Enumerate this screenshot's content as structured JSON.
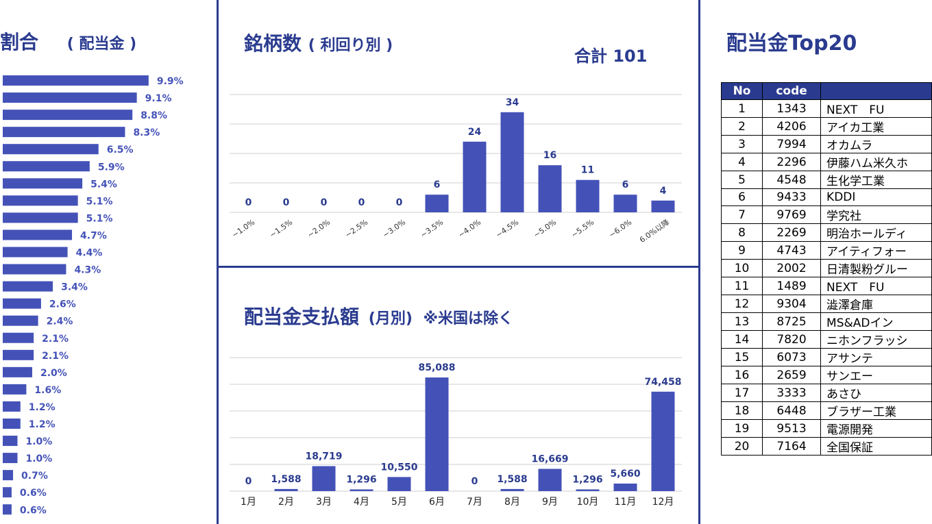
{
  "colors": {
    "bar": "#4452b8",
    "title": "#2a3b8f",
    "divider": "#2a3b8f",
    "grid": "#cfcfcf"
  },
  "left_panel": {
    "title": "割合",
    "subtitle": "( 配当金 )"
  },
  "top_chart_panel": {
    "title": "銘柄数",
    "subtitle": "( 利回り別 )",
    "total_label": "合計 101"
  },
  "bottom_chart_panel": {
    "title": "配当金支払額",
    "subtitle": "(月別)",
    "note": "※米国は除く"
  },
  "right_panel": {
    "title": "配当金Top20",
    "table": {
      "headers": [
        "No",
        "code",
        ""
      ],
      "rows": [
        [
          "1",
          "1343",
          "NEXT　FU"
        ],
        [
          "2",
          "4206",
          "アイカ工業"
        ],
        [
          "3",
          "7994",
          "オカムラ"
        ],
        [
          "4",
          "2296",
          "伊藤ハム米久ホ"
        ],
        [
          "5",
          "4548",
          "生化学工業"
        ],
        [
          "6",
          "9433",
          "KDDI"
        ],
        [
          "7",
          "9769",
          "学究社"
        ],
        [
          "8",
          "2269",
          "明治ホールディ"
        ],
        [
          "9",
          "4743",
          "アイティフォー"
        ],
        [
          "10",
          "2002",
          "日清製粉グルー"
        ],
        [
          "11",
          "1489",
          "NEXT　FU"
        ],
        [
          "12",
          "9304",
          "澁澤倉庫"
        ],
        [
          "13",
          "8725",
          "MS&ADイン"
        ],
        [
          "14",
          "7820",
          "ニホンフラッシ"
        ],
        [
          "15",
          "6073",
          "アサンテ"
        ],
        [
          "16",
          "2659",
          "サンエー"
        ],
        [
          "17",
          "3333",
          "あさひ"
        ],
        [
          "18",
          "6448",
          "ブラザー工業"
        ],
        [
          "19",
          "9513",
          "電源開発"
        ],
        [
          "20",
          "7164",
          "全国保証"
        ]
      ]
    }
  },
  "chart_data": [
    {
      "type": "bar",
      "orientation": "horizontal",
      "values": [
        9.9,
        9.1,
        8.8,
        8.3,
        6.5,
        5.9,
        5.4,
        5.1,
        5.1,
        4.7,
        4.4,
        4.3,
        3.4,
        2.6,
        2.4,
        2.1,
        2.1,
        2.0,
        1.6,
        1.2,
        1.2,
        1.0,
        1.0,
        0.7,
        0.6,
        0.6
      ],
      "labels": [
        "9.9%",
        "9.1%",
        "8.8%",
        "8.3%",
        "6.5%",
        "5.9%",
        "5.4%",
        "5.1%",
        "5.1%",
        "4.7%",
        "4.4%",
        "4.3%",
        "3.4%",
        "2.6%",
        "2.4%",
        "2.1%",
        "2.1%",
        "2.0%",
        "1.6%",
        "1.2%",
        "1.2%",
        "1.0%",
        "1.0%",
        "0.7%",
        "0.6%",
        "0.6%"
      ]
    },
    {
      "type": "bar",
      "categories": [
        "~1.0%",
        "~1.5%",
        "~2.0%",
        "~2.5%",
        "~3.0%",
        "~3.5%",
        "~4.0%",
        "~4.5%",
        "~5.0%",
        "~5.5%",
        "~6.0%",
        "6.0%以降"
      ],
      "values": [
        0,
        0,
        0,
        0,
        0,
        6,
        24,
        34,
        16,
        11,
        6,
        4
      ],
      "ylim": [
        0,
        40
      ],
      "grid": true
    },
    {
      "type": "bar",
      "categories": [
        "1月",
        "2月",
        "3月",
        "4月",
        "5月",
        "6月",
        "7月",
        "8月",
        "9月",
        "10月",
        "11月",
        "12月"
      ],
      "values": [
        0,
        1588,
        18719,
        1296,
        10550,
        85088,
        0,
        1588,
        16669,
        1296,
        5660,
        74458
      ],
      "value_labels": [
        "0",
        "1,588",
        "18,719",
        "1,296",
        "10,550",
        "85,088",
        "0",
        "1,588",
        "16,669",
        "1,296",
        "5,660",
        "74,458"
      ],
      "ylim": [
        0,
        100000
      ],
      "grid": true
    }
  ]
}
